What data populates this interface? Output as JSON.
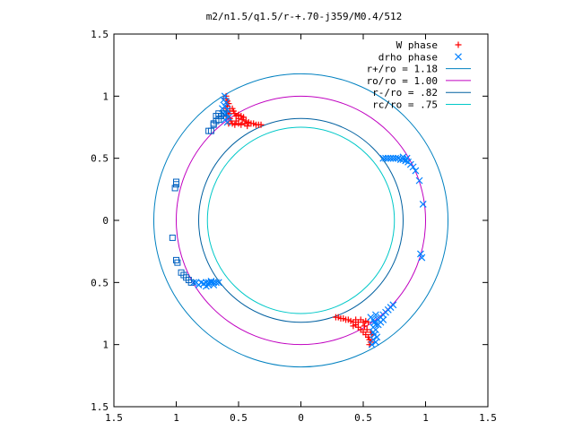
{
  "chart_data": {
    "type": "scatter",
    "title": "m2/n1.5/q1.5/r-+.70-j359/M0.4/512",
    "xlim": [
      -1.5,
      1.5
    ],
    "ylim": [
      -1.5,
      1.5
    ],
    "xticks": [
      -1.5,
      -1,
      -0.5,
      0,
      0.5,
      1,
      1.5
    ],
    "yticks": [
      -1.5,
      -1,
      -0.5,
      0,
      0.5,
      1,
      1.5
    ],
    "xtick_labels": [
      "1.5",
      "1",
      "0.5",
      "0",
      "0.5",
      "1",
      "1.5"
    ],
    "ytick_labels": [
      "1.5",
      "1",
      "0.5",
      "0",
      "0.5",
      "1",
      "1.5"
    ],
    "grid": false,
    "legend_position": "top-right",
    "legend": [
      {
        "label": "W phase",
        "marker": "plus",
        "color": "#ff0000"
      },
      {
        "label": "drho phase",
        "marker": "x",
        "color": "#0080ff"
      },
      {
        "label": "r+/ro = 1.18",
        "marker": "line",
        "color": "#0080c0"
      },
      {
        "label": "ro/ro = 1.00",
        "marker": "line",
        "color": "#c000c0"
      },
      {
        "label": "r-/ro = .82",
        "marker": "line",
        "color": "#0060a0"
      },
      {
        "label": "rc/ro = .75",
        "marker": "line",
        "color": "#00c8c8"
      }
    ],
    "circles": [
      {
        "radius": 1.18,
        "color": "#0080c0"
      },
      {
        "radius": 1.0,
        "color": "#c000c0"
      },
      {
        "radius": 0.82,
        "color": "#0060a0"
      },
      {
        "radius": 0.75,
        "color": "#00c8c8"
      }
    ],
    "series": [
      {
        "name": "W phase",
        "marker": "plus",
        "color": "#ff0000",
        "points": [
          [
            -0.6,
            1.0
          ],
          [
            -0.6,
            0.98
          ],
          [
            -0.59,
            0.96
          ],
          [
            -0.58,
            0.94
          ],
          [
            -0.59,
            0.92
          ],
          [
            -0.6,
            0.9
          ],
          [
            -0.57,
            0.88
          ],
          [
            -0.58,
            0.86
          ],
          [
            -0.6,
            0.84
          ],
          [
            -0.57,
            0.82
          ],
          [
            -0.56,
            0.8
          ],
          [
            -0.58,
            0.78
          ],
          [
            -0.55,
            0.9
          ],
          [
            -0.54,
            0.88
          ],
          [
            -0.53,
            0.86
          ],
          [
            -0.52,
            0.84
          ],
          [
            -0.5,
            0.85
          ],
          [
            -0.48,
            0.84
          ],
          [
            -0.46,
            0.83
          ],
          [
            -0.5,
            0.82
          ],
          [
            -0.47,
            0.81
          ],
          [
            -0.44,
            0.8
          ],
          [
            -0.42,
            0.79
          ],
          [
            -0.4,
            0.78
          ],
          [
            -0.38,
            0.78
          ],
          [
            -0.36,
            0.77
          ],
          [
            -0.34,
            0.77
          ],
          [
            -0.32,
            0.77
          ],
          [
            -0.52,
            0.8
          ],
          [
            -0.5,
            0.78
          ],
          [
            -0.48,
            0.77
          ],
          [
            -0.55,
            0.78
          ],
          [
            -0.53,
            0.77
          ],
          [
            -0.45,
            0.78
          ],
          [
            -0.43,
            0.76
          ],
          [
            0.28,
            -0.78
          ],
          [
            0.3,
            -0.78
          ],
          [
            0.32,
            -0.79
          ],
          [
            0.34,
            -0.79
          ],
          [
            0.36,
            -0.8
          ],
          [
            0.38,
            -0.8
          ],
          [
            0.4,
            -0.81
          ],
          [
            0.42,
            -0.82
          ],
          [
            0.44,
            -0.8
          ],
          [
            0.46,
            -0.82
          ],
          [
            0.48,
            -0.8
          ],
          [
            0.5,
            -0.82
          ],
          [
            0.52,
            -0.81
          ],
          [
            0.54,
            -0.82
          ],
          [
            0.46,
            -0.86
          ],
          [
            0.48,
            -0.88
          ],
          [
            0.5,
            -0.9
          ],
          [
            0.52,
            -0.92
          ],
          [
            0.54,
            -0.94
          ],
          [
            0.55,
            -0.96
          ],
          [
            0.56,
            -0.98
          ],
          [
            0.55,
            -1.0
          ],
          [
            0.53,
            -0.88
          ],
          [
            0.51,
            -0.85
          ],
          [
            0.44,
            -0.84
          ],
          [
            0.42,
            -0.85
          ],
          [
            0.57,
            -0.92
          ],
          [
            0.56,
            -0.9
          ]
        ]
      },
      {
        "name": "drho phase",
        "marker": "x",
        "color": "#0080ff",
        "points": [
          [
            -0.61,
            1.0
          ],
          [
            -0.62,
            0.97
          ],
          [
            -0.6,
            0.95
          ],
          [
            -0.61,
            0.92
          ],
          [
            -0.59,
            0.89
          ],
          [
            -0.6,
            0.86
          ],
          [
            -0.58,
            0.83
          ],
          [
            -0.61,
            0.81
          ],
          [
            -0.59,
            0.79
          ],
          [
            -0.62,
            0.86
          ],
          [
            -0.63,
            0.9
          ],
          [
            0.66,
            0.5
          ],
          [
            0.68,
            0.5
          ],
          [
            0.7,
            0.5
          ],
          [
            0.72,
            0.5
          ],
          [
            0.74,
            0.5
          ],
          [
            0.76,
            0.5
          ],
          [
            0.78,
            0.5
          ],
          [
            0.8,
            0.49
          ],
          [
            0.82,
            0.49
          ],
          [
            0.84,
            0.48
          ],
          [
            0.86,
            0.47
          ],
          [
            0.88,
            0.45
          ],
          [
            0.9,
            0.43
          ],
          [
            0.92,
            0.4
          ],
          [
            0.82,
            0.51
          ],
          [
            0.85,
            0.5
          ],
          [
            0.95,
            0.32
          ],
          [
            0.98,
            0.13
          ],
          [
            0.96,
            -0.27
          ],
          [
            0.97,
            -0.3
          ],
          [
            -0.72,
            -0.5
          ],
          [
            -0.7,
            -0.5
          ],
          [
            -0.68,
            -0.5
          ],
          [
            -0.66,
            -0.5
          ],
          [
            -0.74,
            -0.5
          ],
          [
            -0.76,
            -0.5
          ],
          [
            -0.78,
            -0.51
          ],
          [
            -0.8,
            -0.5
          ],
          [
            -0.82,
            -0.52
          ],
          [
            -0.84,
            -0.5
          ],
          [
            -0.86,
            -0.5
          ],
          [
            -0.74,
            -0.52
          ],
          [
            -0.76,
            -0.53
          ],
          [
            -0.72,
            -0.49
          ],
          [
            -0.7,
            -0.52
          ],
          [
            0.56,
            -0.78
          ],
          [
            0.58,
            -0.8
          ],
          [
            0.59,
            -0.82
          ],
          [
            0.6,
            -0.84
          ],
          [
            0.58,
            -0.86
          ],
          [
            0.6,
            -0.88
          ],
          [
            0.58,
            -0.9
          ],
          [
            0.59,
            -0.92
          ],
          [
            0.61,
            -0.94
          ],
          [
            0.58,
            -0.96
          ],
          [
            0.6,
            -0.98
          ],
          [
            0.57,
            -1.0
          ],
          [
            0.62,
            -0.8
          ],
          [
            0.64,
            -0.78
          ],
          [
            0.66,
            -0.76
          ],
          [
            0.68,
            -0.74
          ],
          [
            0.7,
            -0.72
          ],
          [
            0.72,
            -0.7
          ],
          [
            0.74,
            -0.68
          ],
          [
            0.62,
            -0.84
          ],
          [
            0.64,
            -0.82
          ],
          [
            0.6,
            -0.76
          ],
          [
            0.66,
            -0.8
          ]
        ]
      },
      {
        "name": "",
        "marker": "square",
        "color": "#0060c0",
        "points": [
          [
            -0.7,
            0.78
          ],
          [
            -0.7,
            0.77
          ],
          [
            -0.72,
            0.72
          ],
          [
            -0.74,
            0.72
          ],
          [
            -0.68,
            0.8
          ],
          [
            -0.66,
            0.81
          ],
          [
            -0.64,
            0.84
          ],
          [
            -0.66,
            0.86
          ],
          [
            -0.68,
            0.84
          ],
          [
            -0.62,
            0.86
          ],
          [
            -1.0,
            0.31
          ],
          [
            -1.0,
            0.29
          ],
          [
            -1.01,
            0.26
          ],
          [
            -1.03,
            -0.14
          ],
          [
            -1.0,
            -0.32
          ],
          [
            -0.99,
            -0.34
          ],
          [
            -0.96,
            -0.42
          ],
          [
            -0.94,
            -0.44
          ],
          [
            -0.92,
            -0.46
          ],
          [
            -0.9,
            -0.48
          ],
          [
            -0.88,
            -0.5
          ]
        ]
      }
    ]
  }
}
